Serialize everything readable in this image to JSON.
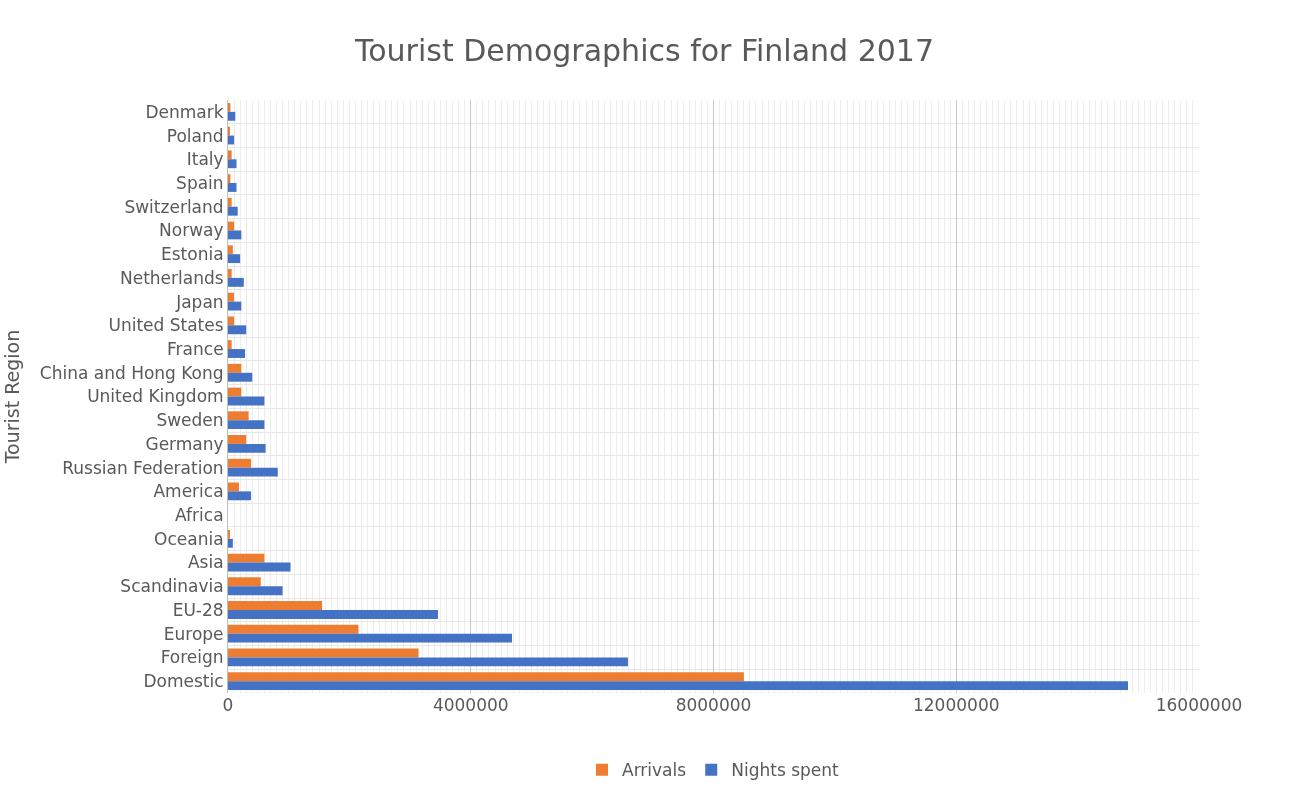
{
  "chart_data": {
    "type": "bar",
    "orientation": "horizontal",
    "title": "Tourist Demographics for Finland 2017",
    "ylabel": "Tourist Region",
    "categories": [
      "Denmark",
      "Poland",
      "Italy",
      "Spain",
      "Switzerland",
      "Norway",
      "Estonia",
      "Netherlands",
      "Japan",
      "United States",
      "France",
      "China and Hong Kong",
      "United Kingdom",
      "Sweden",
      "Germany",
      "Russian Federation",
      "America",
      "Africa",
      "Oceania",
      "Asia",
      "Scandinavia",
      "EU-28",
      "Europe",
      "Foreign",
      "Domestic"
    ],
    "series": [
      {
        "name": "Arrivals",
        "color": "#ed7d31",
        "values": [
          40000,
          30000,
          60000,
          40000,
          60000,
          100000,
          80000,
          60000,
          100000,
          100000,
          60000,
          220000,
          220000,
          340000,
          300000,
          380000,
          180000,
          0,
          30000,
          600000,
          540000,
          1550000,
          2150000,
          3140000,
          8500000
        ]
      },
      {
        "name": "Nights spent",
        "color": "#4472c4",
        "values": [
          120000,
          100000,
          140000,
          140000,
          160000,
          220000,
          200000,
          260000,
          220000,
          300000,
          280000,
          400000,
          600000,
          600000,
          620000,
          820000,
          380000,
          0,
          80000,
          1030000,
          900000,
          3460000,
          4680000,
          6590000,
          14830000
        ]
      }
    ],
    "xlim": [
      0,
      16000000
    ],
    "xticks": [
      0,
      4000000,
      8000000,
      12000000,
      16000000
    ],
    "grid": true,
    "legend": "bottom"
  }
}
